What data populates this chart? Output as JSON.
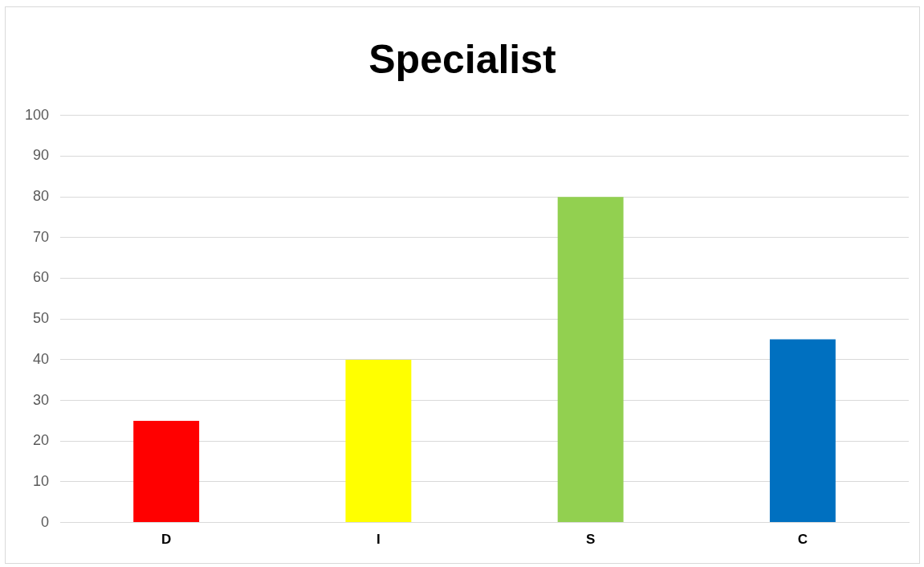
{
  "chart_data": {
    "type": "bar",
    "title": "Specialist",
    "categories": [
      "D",
      "I",
      "S",
      "C"
    ],
    "values": [
      25,
      40,
      80,
      45
    ],
    "colors": [
      "#ff0000",
      "#ffff00",
      "#92d050",
      "#0070c0"
    ],
    "ylim": [
      0,
      100
    ],
    "yticks": [
      0,
      10,
      20,
      30,
      40,
      50,
      60,
      70,
      80,
      90,
      100
    ],
    "grid": "y"
  }
}
